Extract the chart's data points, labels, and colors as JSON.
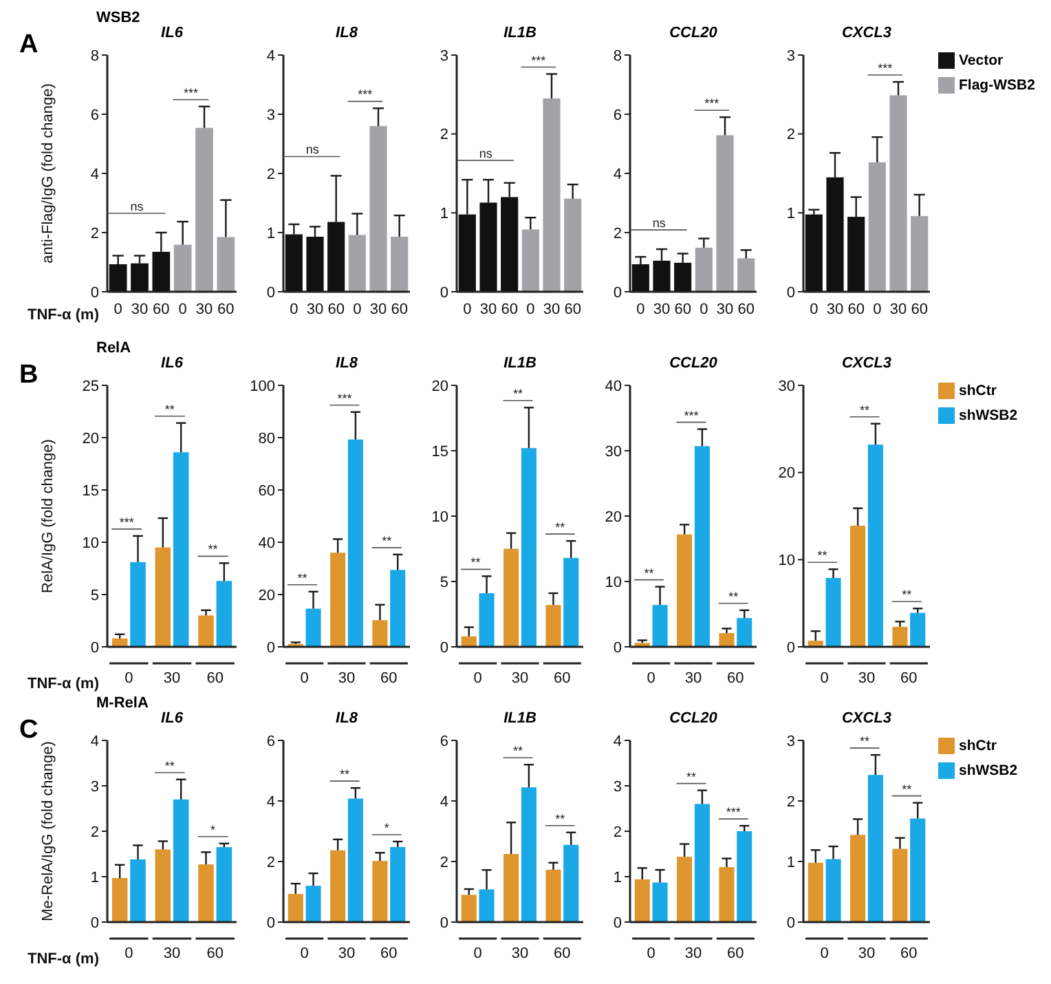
{
  "chart_data": [
    {
      "type": "bar",
      "title": "IL6",
      "subtitle": "WSB2",
      "xlabel": "TNF-α (m)",
      "ylabel": "anti-Flag/IgG (fold change)",
      "categories": [
        "0",
        "30",
        "60",
        "0",
        "30",
        "60"
      ],
      "ylim": [
        0,
        8
      ],
      "yticks": [
        0,
        2,
        4,
        6,
        8
      ],
      "series": [
        {
          "color": "#111111",
          "values": [
            0.93,
            0.96,
            1.35,
            null,
            null,
            null
          ],
          "errors": [
            [
              0.93,
              1.22
            ],
            [
              0.96,
              1.22
            ],
            [
              1.35,
              2.0
            ],
            null,
            null,
            null
          ]
        },
        {
          "color": "#a2a3a7",
          "values": [
            null,
            null,
            null,
            1.59,
            5.54,
            1.85
          ],
          "errors": [
            null,
            null,
            null,
            [
              1.59,
              2.37
            ],
            [
              5.54,
              6.26
            ],
            [
              1.85,
              3.1
            ]
          ]
        }
      ],
      "annotations": [
        "A",
        "ns",
        "***"
      ]
    },
    {
      "type": "bar",
      "title": "IL8",
      "categories": [
        "0",
        "30",
        "60",
        "0",
        "30",
        "60"
      ],
      "ylim": [
        0,
        4
      ],
      "yticks": [
        0,
        1,
        2,
        3,
        4
      ],
      "series": [
        {
          "color": "#111111",
          "values": [
            0.97,
            0.93,
            1.18,
            null,
            null,
            null
          ],
          "errors": [
            [
              0.97,
              1.14
            ],
            [
              0.93,
              1.1
            ],
            [
              1.18,
              1.96
            ],
            null,
            null,
            null
          ]
        },
        {
          "color": "#a2a3a7",
          "values": [
            null,
            null,
            null,
            0.96,
            2.8,
            0.93
          ],
          "errors": [
            null,
            null,
            null,
            [
              0.96,
              1.32
            ],
            [
              2.8,
              3.1
            ],
            [
              0.93,
              1.29
            ]
          ]
        }
      ],
      "annotations": [
        "ns",
        "***"
      ]
    },
    {
      "type": "bar",
      "title": "IL1B",
      "categories": [
        "0",
        "30",
        "60",
        "0",
        "30",
        "60"
      ],
      "ylim": [
        0,
        3
      ],
      "yticks": [
        0,
        1,
        2,
        3
      ],
      "series": [
        {
          "color": "#111111",
          "values": [
            0.98,
            1.13,
            1.2,
            null,
            null,
            null
          ],
          "errors": [
            [
              0.98,
              1.42
            ],
            [
              1.13,
              1.42
            ],
            [
              1.2,
              1.38
            ],
            null,
            null,
            null
          ]
        },
        {
          "color": "#a2a3a7",
          "values": [
            null,
            null,
            null,
            0.79,
            2.45,
            1.18
          ],
          "errors": [
            null,
            null,
            null,
            [
              0.79,
              0.94
            ],
            [
              2.45,
              2.76
            ],
            [
              1.18,
              1.36
            ]
          ]
        }
      ],
      "annotations": [
        "ns",
        "***"
      ]
    },
    {
      "type": "bar",
      "title": "CCL20",
      "categories": [
        "0",
        "30",
        "60",
        "0",
        "30",
        "60"
      ],
      "ylim": [
        0,
        8
      ],
      "yticks": [
        0,
        2,
        4,
        6,
        8
      ],
      "series": [
        {
          "color": "#111111",
          "values": [
            0.93,
            1.05,
            0.98,
            null,
            null,
            null
          ],
          "errors": [
            [
              0.93,
              1.18
            ],
            [
              1.05,
              1.44
            ],
            [
              0.98,
              1.29
            ],
            null,
            null,
            null
          ]
        },
        {
          "color": "#a2a3a7",
          "values": [
            null,
            null,
            null,
            1.49,
            5.29,
            1.13
          ],
          "errors": [
            null,
            null,
            null,
            [
              1.49,
              1.8
            ],
            [
              5.29,
              5.9
            ],
            [
              1.13,
              1.41
            ]
          ]
        }
      ],
      "annotations": [
        "ns",
        "***"
      ]
    },
    {
      "type": "bar",
      "title": "CXCL3",
      "categories": [
        "0",
        "30",
        "60",
        "0",
        "30",
        "60"
      ],
      "ylim": [
        0,
        3
      ],
      "yticks": [
        0,
        1,
        2,
        3
      ],
      "legend": "right",
      "series": [
        {
          "name": "Vector",
          "color": "#111111",
          "values": [
            0.98,
            1.45,
            0.95,
            null,
            null,
            null
          ],
          "errors": [
            [
              0.98,
              1.04
            ],
            [
              1.45,
              1.76
            ],
            [
              0.95,
              1.2
            ],
            null,
            null,
            null
          ]
        },
        {
          "name": "Flag-WSB2",
          "color": "#a2a3a7",
          "values": [
            null,
            null,
            null,
            1.64,
            2.49,
            0.96
          ],
          "errors": [
            null,
            null,
            null,
            [
              1.64,
              1.96
            ],
            [
              2.49,
              2.66
            ],
            [
              0.96,
              1.23
            ]
          ]
        }
      ],
      "annotations": [
        "***"
      ]
    },
    {
      "type": "bar",
      "title": "IL6",
      "subtitle": "RelA",
      "xlabel": "TNF-α (m)",
      "ylabel": "RelA/IgG (fold change)",
      "categories": [
        "0",
        "30",
        "60"
      ],
      "ylim": [
        0,
        25
      ],
      "yticks": [
        0,
        5,
        10,
        15,
        20,
        25
      ],
      "series": [
        {
          "color": "#e0962e",
          "values": [
            0.8,
            9.5,
            3.0
          ],
          "errors": [
            [
              0.8,
              1.2
            ],
            [
              9.5,
              12.3
            ],
            [
              3.0,
              3.5
            ]
          ]
        },
        {
          "color": "#1aa9e6",
          "values": [
            8.1,
            18.6,
            6.3
          ],
          "errors": [
            [
              8.1,
              10.6
            ],
            [
              18.6,
              21.4
            ],
            [
              6.3,
              8.0
            ]
          ]
        }
      ],
      "annotations": [
        "B",
        "***",
        "**",
        "**"
      ]
    },
    {
      "type": "bar",
      "title": "IL8",
      "categories": [
        "0",
        "30",
        "60"
      ],
      "ylim": [
        0,
        100
      ],
      "yticks": [
        0,
        20,
        40,
        60,
        80,
        100
      ],
      "series": [
        {
          "color": "#e0962e",
          "values": [
            1.1,
            36,
            10.2
          ],
          "errors": [
            [
              1.1,
              1.7
            ],
            [
              36,
              41.2
            ],
            [
              10.2,
              16.1
            ]
          ]
        },
        {
          "color": "#1aa9e6",
          "values": [
            14.6,
            79.3,
            29.4
          ],
          "errors": [
            [
              14.6,
              21.1
            ],
            [
              79.3,
              89.8
            ],
            [
              29.4,
              35.3
            ]
          ]
        }
      ],
      "annotations": [
        "**",
        "***",
        "**"
      ]
    },
    {
      "type": "bar",
      "title": "IL1B",
      "categories": [
        "0",
        "30",
        "60"
      ],
      "ylim": [
        0,
        20
      ],
      "yticks": [
        0,
        5,
        10,
        15,
        20
      ],
      "series": [
        {
          "color": "#e0962e",
          "values": [
            0.8,
            7.5,
            3.2
          ],
          "errors": [
            [
              0.8,
              1.5
            ],
            [
              7.5,
              8.7
            ],
            [
              3.2,
              4.1
            ]
          ]
        },
        {
          "color": "#1aa9e6",
          "values": [
            4.1,
            15.2,
            6.8
          ],
          "errors": [
            [
              4.1,
              5.4
            ],
            [
              15.2,
              18.3
            ],
            [
              6.8,
              8.1
            ]
          ]
        }
      ],
      "annotations": [
        "**",
        "**",
        "**"
      ]
    },
    {
      "type": "bar",
      "title": "CCL20",
      "categories": [
        "0",
        "30",
        "60"
      ],
      "ylim": [
        0,
        40
      ],
      "yticks": [
        0,
        10,
        20,
        30,
        40
      ],
      "series": [
        {
          "color": "#e0962e",
          "values": [
            0.6,
            17.2,
            2.1
          ],
          "errors": [
            [
              0.6,
              1.0
            ],
            [
              17.2,
              18.7
            ],
            [
              2.1,
              2.8
            ]
          ]
        },
        {
          "color": "#1aa9e6",
          "values": [
            6.4,
            30.7,
            4.4
          ],
          "errors": [
            [
              6.4,
              9.2
            ],
            [
              30.7,
              33.3
            ],
            [
              4.4,
              5.6
            ]
          ]
        }
      ],
      "annotations": [
        "**",
        "***",
        "**"
      ]
    },
    {
      "type": "bar",
      "title": "CXCL3",
      "categories": [
        "0",
        "30",
        "60"
      ],
      "ylim": [
        0,
        30
      ],
      "yticks": [
        0,
        10,
        20,
        30
      ],
      "legend": "right",
      "series": [
        {
          "name": "shCtr",
          "color": "#e0962e",
          "values": [
            0.7,
            13.9,
            2.3
          ],
          "errors": [
            [
              0.7,
              1.8
            ],
            [
              13.9,
              15.9
            ],
            [
              2.3,
              2.9
            ]
          ]
        },
        {
          "name": "shWSB2",
          "color": "#1aa9e6",
          "values": [
            7.9,
            23.2,
            3.9
          ],
          "errors": [
            [
              7.9,
              8.9
            ],
            [
              23.2,
              25.6
            ],
            [
              3.9,
              4.4
            ]
          ]
        }
      ],
      "annotations": [
        "**",
        "**",
        "**"
      ]
    },
    {
      "type": "bar",
      "title": "IL6",
      "subtitle": "M-RelA",
      "xlabel": "TNF-α (m)",
      "ylabel": "Me-RelA/IgG (fold change)",
      "categories": [
        "0",
        "30",
        "60"
      ],
      "ylim": [
        0,
        4
      ],
      "yticks": [
        0,
        1,
        2,
        3,
        4
      ],
      "series": [
        {
          "color": "#e0962e",
          "values": [
            0.97,
            1.6,
            1.27
          ],
          "errors": [
            [
              0.97,
              1.26
            ],
            [
              1.6,
              1.78
            ],
            [
              1.27,
              1.54
            ]
          ]
        },
        {
          "color": "#1aa9e6",
          "values": [
            1.38,
            2.7,
            1.65
          ],
          "errors": [
            [
              1.38,
              1.69
            ],
            [
              2.7,
              3.14
            ],
            [
              1.65,
              1.73
            ]
          ]
        }
      ],
      "annotations": [
        "C",
        "**",
        "*"
      ]
    },
    {
      "type": "bar",
      "title": "IL8",
      "categories": [
        "0",
        "30",
        "60"
      ],
      "ylim": [
        0,
        6
      ],
      "yticks": [
        0,
        2,
        4,
        6
      ],
      "series": [
        {
          "color": "#e0962e",
          "values": [
            0.93,
            2.37,
            2.02
          ],
          "errors": [
            [
              0.93,
              1.27
            ],
            [
              2.37,
              2.73
            ],
            [
              2.02,
              2.29
            ]
          ]
        },
        {
          "color": "#1aa9e6",
          "values": [
            1.2,
            4.08,
            2.48
          ],
          "errors": [
            [
              1.2,
              1.61
            ],
            [
              4.08,
              4.43
            ],
            [
              2.48,
              2.66
            ]
          ]
        }
      ],
      "annotations": [
        "**",
        "*"
      ]
    },
    {
      "type": "bar",
      "title": "IL1B",
      "categories": [
        "0",
        "30",
        "60"
      ],
      "ylim": [
        0,
        6
      ],
      "yticks": [
        0,
        2,
        4,
        6
      ],
      "series": [
        {
          "color": "#e0962e",
          "values": [
            0.9,
            2.25,
            1.73
          ],
          "errors": [
            [
              0.9,
              1.09
            ],
            [
              2.25,
              3.29
            ],
            [
              1.73,
              1.96
            ]
          ]
        },
        {
          "color": "#1aa9e6",
          "values": [
            1.08,
            4.45,
            2.55
          ],
          "errors": [
            [
              1.08,
              1.72
            ],
            [
              4.45,
              5.2
            ],
            [
              2.55,
              2.96
            ]
          ]
        }
      ],
      "annotations": [
        "**",
        "**"
      ]
    },
    {
      "type": "bar",
      "title": "CCL20",
      "categories": [
        "0",
        "30",
        "60"
      ],
      "ylim": [
        0,
        4
      ],
      "yticks": [
        0,
        1,
        2,
        3,
        4
      ],
      "series": [
        {
          "color": "#e0962e",
          "values": [
            0.94,
            1.44,
            1.21
          ],
          "errors": [
            [
              0.94,
              1.19
            ],
            [
              1.44,
              1.72
            ],
            [
              1.21,
              1.4
            ]
          ]
        },
        {
          "color": "#1aa9e6",
          "values": [
            0.87,
            2.6,
            2.0
          ],
          "errors": [
            [
              0.87,
              1.15
            ],
            [
              2.6,
              2.9
            ],
            [
              2.0,
              2.12
            ]
          ]
        }
      ],
      "annotations": [
        "**",
        "***"
      ]
    },
    {
      "type": "bar",
      "title": "CXCL3",
      "categories": [
        "0",
        "30",
        "60"
      ],
      "ylim": [
        0,
        3
      ],
      "yticks": [
        0,
        1,
        2,
        3
      ],
      "legend": "right",
      "series": [
        {
          "name": "shCtr",
          "color": "#e0962e",
          "values": [
            0.98,
            1.44,
            1.21
          ],
          "errors": [
            [
              0.98,
              1.19
            ],
            [
              1.44,
              1.7
            ],
            [
              1.21,
              1.39
            ]
          ]
        },
        {
          "name": "shWSB2",
          "color": "#1aa9e6",
          "values": [
            1.04,
            2.43,
            1.71
          ],
          "errors": [
            [
              1.04,
              1.25
            ],
            [
              2.43,
              2.76
            ],
            [
              1.71,
              1.97
            ]
          ]
        }
      ],
      "annotations": [
        "**",
        "**"
      ]
    }
  ]
}
